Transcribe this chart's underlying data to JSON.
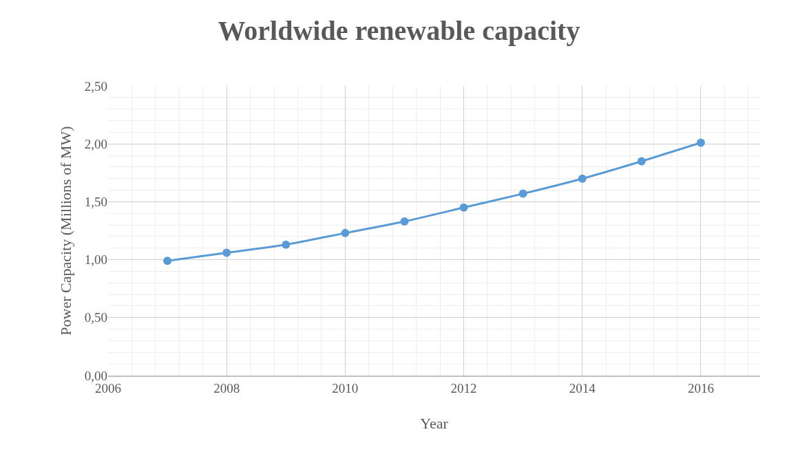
{
  "chart_data": {
    "type": "line",
    "title": "Worldwide renewable capacity",
    "xlabel": "Year",
    "ylabel": "Power Capacity (Millions of MW)",
    "x": [
      2007,
      2008,
      2009,
      2010,
      2011,
      2012,
      2013,
      2014,
      2015,
      2016
    ],
    "series": [
      {
        "color": "#5b9bd5",
        "values": [
          0.99,
          1.06,
          1.13,
          1.23,
          1.33,
          1.45,
          1.57,
          1.7,
          1.85,
          2.01
        ]
      }
    ],
    "xlim": [
      2006,
      2017
    ],
    "xticks": [
      2006,
      2008,
      2010,
      2012,
      2014,
      2016
    ],
    "ylim": [
      0,
      2.5
    ],
    "yticks": [
      {
        "value": 0,
        "label": "0,00"
      },
      {
        "value": 0.5,
        "label": "0,50"
      },
      {
        "value": 1,
        "label": "1,00"
      },
      {
        "value": 1.5,
        "label": "1,50"
      },
      {
        "value": 2,
        "label": "2,00"
      },
      {
        "value": 2.5,
        "label": "2,50"
      }
    ],
    "grid": true,
    "marker": "circle",
    "line_style": "solid"
  }
}
